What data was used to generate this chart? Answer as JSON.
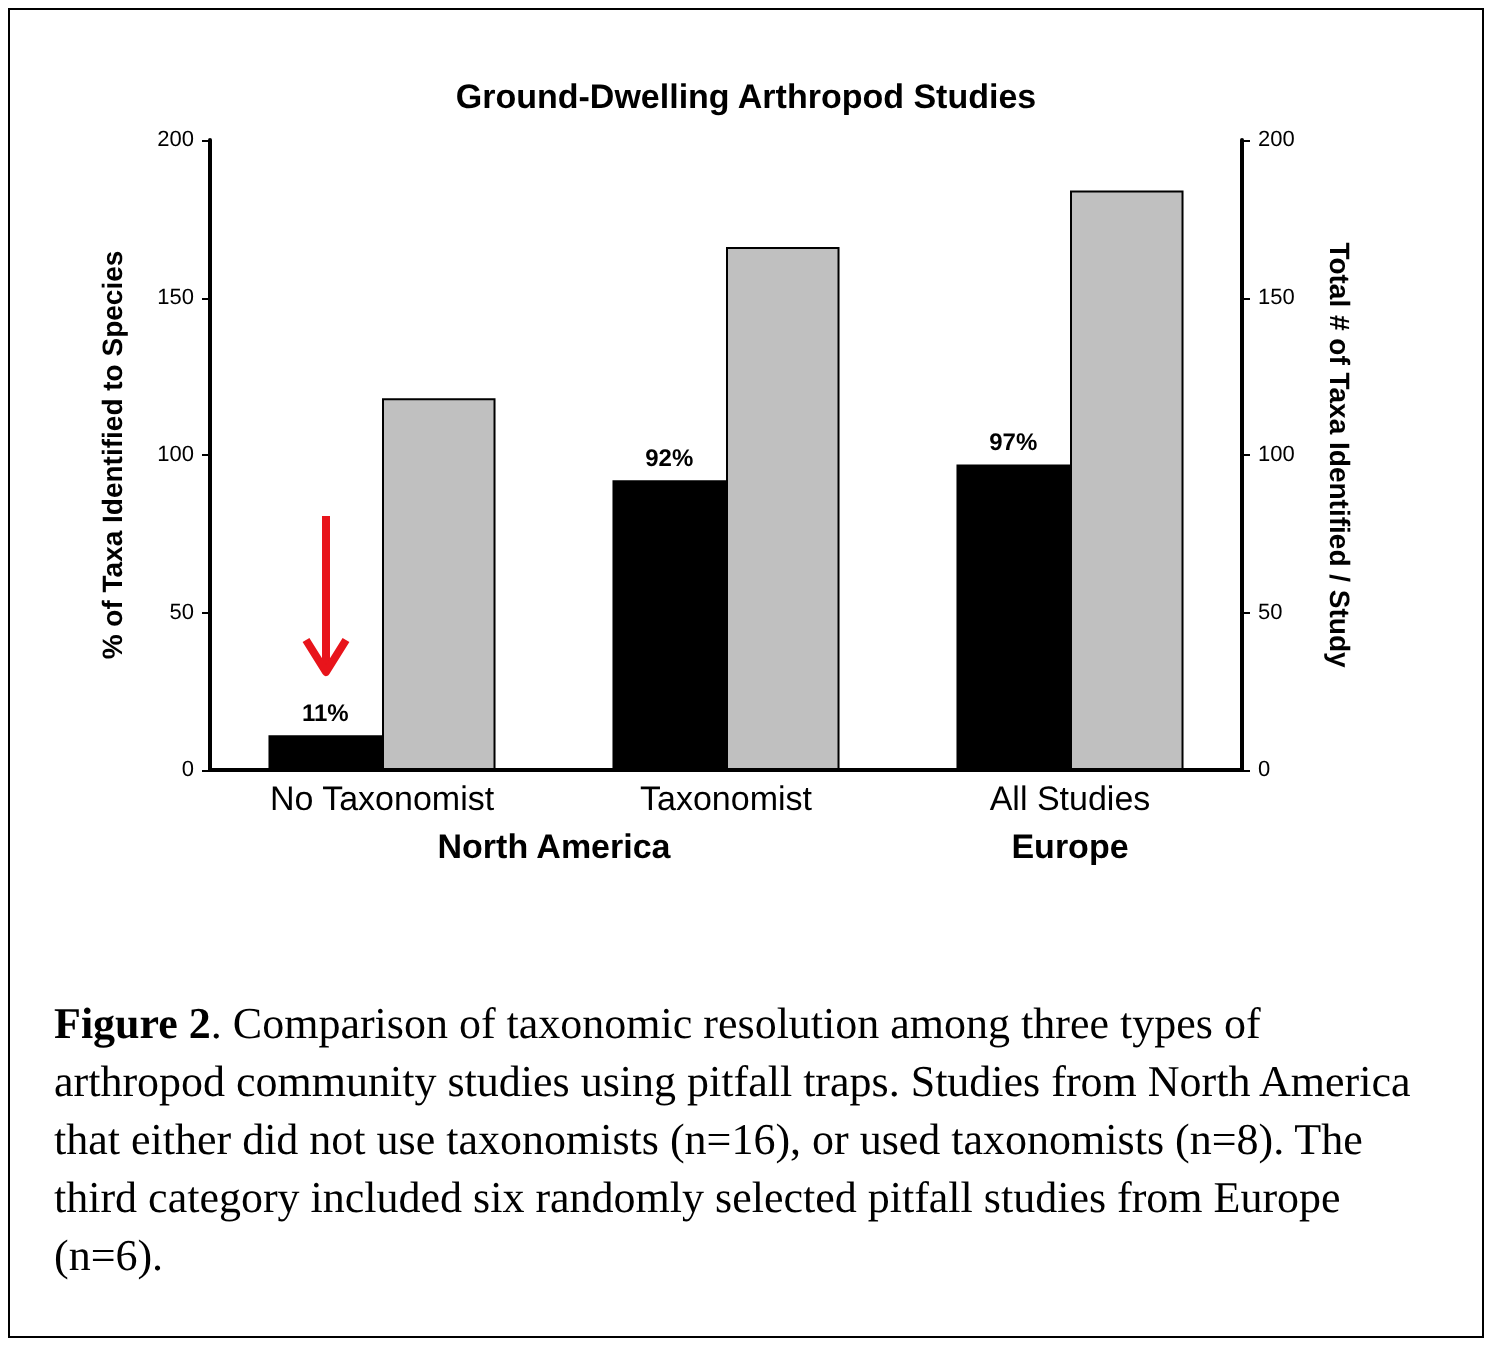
{
  "chart_data": {
    "type": "bar",
    "title": "Ground-Dwelling Arthropod Studies",
    "ylabel": "% of Taxa Identified to Species",
    "y2label": "Total # of Taxa Identified / Study",
    "categories": [
      "No Taxonomist",
      "Taxonomist",
      "All Studies"
    ],
    "series": [
      {
        "color": "#000000",
        "values": [
          11,
          92,
          97
        ],
        "value_labels": [
          "11%",
          "92%",
          "97%"
        ]
      },
      {
        "color": "#c0c0c0",
        "values": [
          118,
          166,
          184
        ],
        "axis": "y2"
      }
    ],
    "ylim": [
      0,
      200
    ],
    "yticks": [
      0,
      50,
      100,
      150,
      200
    ],
    "y2lim": [
      0,
      200
    ],
    "y2ticks": [
      0,
      50,
      100,
      150,
      200
    ],
    "grid": false,
    "annotations": [
      "North America",
      "Europe",
      "Figure 2. Comparison of taxonomic resolution among three types of arthropod community studies using pitfall traps. Studies from North America that either did not use taxonomists (n=16), or used taxonomists (n=8). The third category included six randomly selected pitfall studies from Europe (n=6)."
    ]
  }
}
